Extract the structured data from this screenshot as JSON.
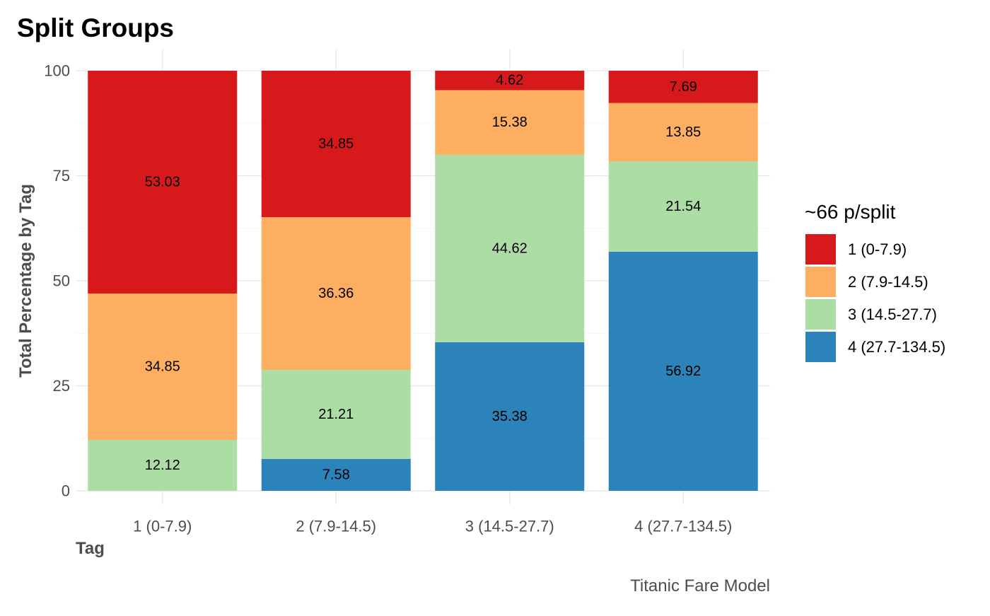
{
  "chart_data": {
    "type": "bar",
    "stacked": true,
    "title": "Split Groups",
    "xlabel": "Tag",
    "ylabel": "Total Percentage by Tag",
    "caption": "Titanic Fare Model",
    "categories": [
      "1 (0-7.9)",
      "2 (7.9-14.5)",
      "3 (14.5-27.7)",
      "4 (27.7-134.5)"
    ],
    "ylim": [
      0,
      100
    ],
    "yticks": [
      0,
      25,
      50,
      75,
      100
    ],
    "grid": true,
    "legend": {
      "title": "~66 p/split",
      "position": "right"
    },
    "series": [
      {
        "name": "1 (0-7.9)",
        "color": "#d7191c",
        "values": [
          53.03,
          34.85,
          4.62,
          7.69
        ],
        "labels": [
          "53.03",
          "34.85",
          "4.62",
          "7.69"
        ]
      },
      {
        "name": "2 (7.9-14.5)",
        "color": "#fdae61",
        "values": [
          34.85,
          36.36,
          15.38,
          13.85
        ],
        "labels": [
          "34.85",
          "36.36",
          "15.38",
          "13.85"
        ]
      },
      {
        "name": "3 (14.5-27.7)",
        "color": "#abdda4",
        "values": [
          12.12,
          21.21,
          44.62,
          21.54
        ],
        "labels": [
          "12.12",
          "21.21",
          "44.62",
          "21.54"
        ]
      },
      {
        "name": "4 (27.7-134.5)",
        "color": "#2b83ba",
        "values": [
          0,
          7.58,
          35.38,
          56.92
        ],
        "labels": [
          "",
          "7.58",
          "35.38",
          "56.92"
        ]
      }
    ]
  }
}
